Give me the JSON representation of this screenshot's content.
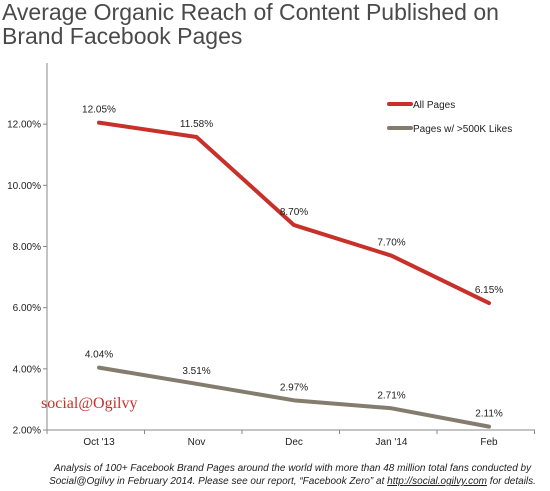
{
  "chart_data": {
    "type": "line",
    "title": "Average Organic Reach of Content Published on Brand Facebook Pages",
    "categories": [
      "Oct '13",
      "Nov",
      "Dec",
      "Jan '14",
      "Feb"
    ],
    "ylim": [
      2,
      14
    ],
    "yticks": [
      "2.00%",
      "4.00%",
      "6.00%",
      "8.00%",
      "10.00%",
      "12.00%"
    ],
    "grid": false,
    "legend_position": "top-right",
    "series": [
      {
        "name": "All Pages",
        "color": "#c8302a",
        "values": [
          12.05,
          11.58,
          8.7,
          7.7,
          6.15
        ],
        "labels": [
          "12.05%",
          "11.58%",
          "8.70%",
          "7.70%",
          "6.15%"
        ]
      },
      {
        "name": "Pages w/ >500K Likes",
        "color": "#847c6e",
        "values": [
          4.04,
          3.51,
          2.97,
          2.71,
          2.11
        ],
        "labels": [
          "4.04%",
          "3.51%",
          "2.97%",
          "2.71%",
          "2.11%"
        ]
      }
    ]
  },
  "brand": "social@Ogilvy",
  "footnote": {
    "before": "Analysis of 100+ Facebook Brand Pages around the world with more than 48 million total fans conducted by Social@Ogilvy in February 2014. Please see our report, “Facebook Zero” at ",
    "link": "http://social.ogilvy.com",
    "after": " for details."
  }
}
